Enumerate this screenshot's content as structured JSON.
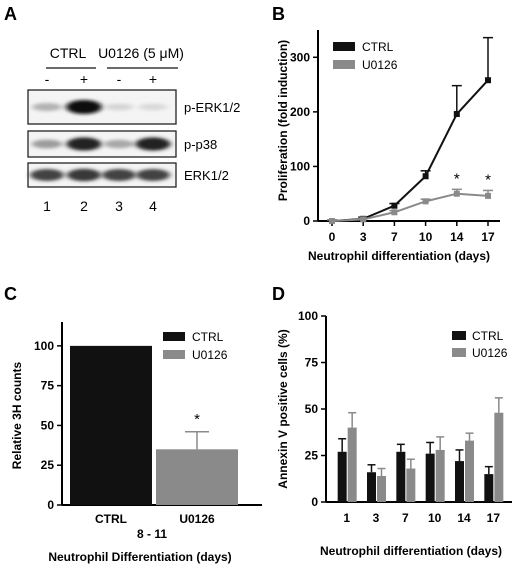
{
  "panels": {
    "A": {
      "letter": "A",
      "group_labels": [
        "CTRL",
        "U0126 (5 μM)"
      ],
      "treatment_marks": [
        "-",
        "+",
        "-",
        "+"
      ],
      "lane_numbers": [
        "1",
        "2",
        "3",
        "4"
      ],
      "blots": [
        {
          "label": "p-ERK1/2",
          "band_intensity": [
            0.25,
            1.0,
            0.1,
            0.08
          ]
        },
        {
          "label": "p-p38",
          "band_intensity": [
            0.35,
            0.9,
            0.3,
            0.9
          ]
        },
        {
          "label": "ERK1/2",
          "band_intensity": [
            0.75,
            0.8,
            0.75,
            0.75
          ]
        }
      ]
    },
    "B": {
      "letter": "B"
    },
    "C": {
      "letter": "C"
    },
    "D": {
      "letter": "D"
    }
  },
  "colors": {
    "ctrl": "#111111",
    "u0126": "#8a8a8a"
  },
  "chart_data": [
    {
      "panel": "B",
      "type": "line",
      "xlabel": "Neutrophil differentiation (days)",
      "ylabel": "Proliferation (fold induction)",
      "categories": [
        "0",
        "3",
        "7",
        "10",
        "14",
        "17"
      ],
      "ylim": [
        0,
        350
      ],
      "yticks": [
        0,
        100,
        200,
        300
      ],
      "legend_position": "top-left",
      "series": [
        {
          "name": "CTRL",
          "values": [
            0,
            4,
            28,
            82,
            196,
            258
          ],
          "errors": [
            2,
            3,
            4,
            10,
            52,
            78
          ]
        },
        {
          "name": "U0126",
          "values": [
            0,
            3,
            16,
            36,
            50,
            46
          ],
          "errors": [
            2,
            2,
            3,
            4,
            8,
            10
          ]
        }
      ],
      "annotations": [
        {
          "category": "14",
          "text": "*"
        },
        {
          "category": "17",
          "text": "*"
        }
      ]
    },
    {
      "panel": "C",
      "type": "bar",
      "xlabel": "Neutrophil Differentiation (days)",
      "ylabel": "Relative 3H counts",
      "categories": [
        "CTRL",
        "U0126"
      ],
      "subcategory_label": "8 - 11",
      "ylim": [
        0,
        115
      ],
      "yticks": [
        0,
        25,
        50,
        75,
        100
      ],
      "legend_position": "top-right",
      "series": [
        {
          "name": "CTRL",
          "values": [
            100,
            null
          ],
          "errors": [
            0,
            null
          ]
        },
        {
          "name": "U0126",
          "values": [
            null,
            35
          ],
          "errors": [
            null,
            11
          ]
        }
      ],
      "annotations": [
        {
          "category": "U0126",
          "text": "*"
        }
      ]
    },
    {
      "panel": "D",
      "type": "bar",
      "xlabel": "Neutrophil differentiation (days)",
      "ylabel": "Annexin V positive cells (%)",
      "categories": [
        "1",
        "3",
        "7",
        "10",
        "14",
        "17"
      ],
      "ylim": [
        0,
        100
      ],
      "yticks": [
        0,
        25,
        50,
        75,
        100
      ],
      "legend_position": "top-right",
      "series": [
        {
          "name": "CTRL",
          "values": [
            27,
            16,
            27,
            26,
            22,
            15
          ],
          "errors": [
            7,
            4,
            4,
            6,
            6,
            4
          ]
        },
        {
          "name": "U0126",
          "values": [
            40,
            14,
            18,
            28,
            33,
            48
          ],
          "errors": [
            8,
            4,
            5,
            7,
            4,
            8
          ]
        }
      ]
    }
  ]
}
